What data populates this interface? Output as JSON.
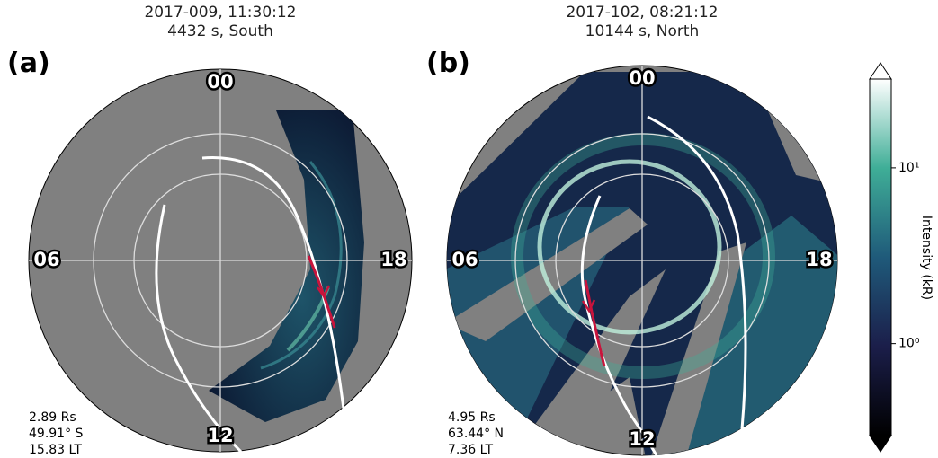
{
  "panels": [
    {
      "label": "(a)",
      "title": [
        "2017-009, 11:30:12",
        "4432 s, South"
      ],
      "hour_labels": {
        "top": "00",
        "left": "06",
        "bottom": "12",
        "right": "18"
      },
      "info": [
        "2.89 Rs",
        "49.91° S",
        "15.83 LT"
      ]
    },
    {
      "label": "(b)",
      "title": [
        "2017-102, 08:21:12",
        "10144 s, North"
      ],
      "hour_labels": {
        "top": "00",
        "left": "06",
        "bottom": "12",
        "right": "18"
      },
      "info": [
        "4.95 Rs",
        "63.44° N",
        "7.36 LT"
      ]
    }
  ],
  "colorbar": {
    "label": "Intensity (kR)",
    "log": true,
    "range": [
      0.3,
      32
    ],
    "ticks": [
      {
        "value": 1,
        "label": "10⁰"
      },
      {
        "value": 10,
        "label": "10¹"
      }
    ]
  }
}
